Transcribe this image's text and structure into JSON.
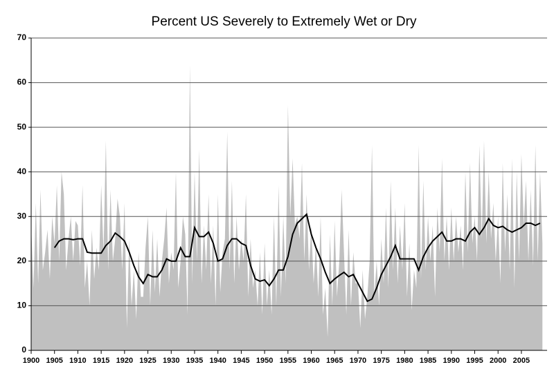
{
  "chart_data": {
    "type": "area-line",
    "title": "Percent US Severely to Extremely Wet or Dry",
    "xlim": [
      1900,
      2010.5
    ],
    "ylim": [
      0,
      70
    ],
    "xticks": [
      1900,
      1905,
      1910,
      1915,
      1920,
      1925,
      1930,
      1935,
      1940,
      1945,
      1950,
      1955,
      1960,
      1965,
      1970,
      1975,
      1980,
      1985,
      1990,
      1995,
      2000,
      2005
    ],
    "yticks": [
      0,
      10,
      20,
      30,
      40,
      50,
      60,
      70
    ],
    "grid": true,
    "series": [
      {
        "kind": "area",
        "color": "#c0c0c0",
        "x": [
          1900,
          1900.5,
          1901,
          1901.5,
          1902,
          1902.5,
          1903,
          1903.5,
          1904,
          1904.5,
          1905,
          1905.5,
          1906,
          1906.5,
          1907,
          1907.5,
          1908,
          1908.5,
          1909,
          1909.5,
          1910,
          1910.5,
          1911,
          1911.5,
          1912,
          1912.5,
          1913,
          1913.5,
          1914,
          1914.5,
          1915,
          1915.5,
          1916,
          1916.5,
          1917,
          1917.5,
          1918,
          1918.5,
          1919,
          1919.5,
          1920,
          1920.5,
          1921,
          1921.5,
          1922,
          1922.5,
          1923,
          1923.5,
          1924,
          1924.5,
          1925,
          1925.5,
          1926,
          1926.5,
          1927,
          1927.5,
          1928,
          1928.5,
          1929,
          1929.5,
          1930,
          1930.5,
          1931,
          1931.5,
          1932,
          1932.5,
          1933,
          1933.5,
          1934,
          1934.5,
          1935,
          1935.5,
          1936,
          1936.5,
          1937,
          1937.5,
          1938,
          1938.5,
          1939,
          1939.5,
          1940,
          1940.5,
          1941,
          1941.5,
          1942,
          1942.5,
          1943,
          1943.5,
          1944,
          1944.5,
          1945,
          1945.5,
          1946,
          1946.5,
          1947,
          1947.5,
          1948,
          1948.5,
          1949,
          1949.5,
          1950,
          1950.5,
          1951,
          1951.5,
          1952,
          1952.5,
          1953,
          1953.5,
          1954,
          1954.5,
          1955,
          1955.5,
          1956,
          1956.5,
          1957,
          1957.5,
          1958,
          1958.5,
          1959,
          1959.5,
          1960,
          1960.5,
          1961,
          1961.5,
          1962,
          1962.5,
          1963,
          1963.5,
          1964,
          1964.5,
          1965,
          1965.5,
          1966,
          1966.5,
          1967,
          1967.5,
          1968,
          1968.5,
          1969,
          1969.5,
          1970,
          1970.5,
          1971,
          1971.5,
          1972,
          1972.5,
          1973,
          1973.5,
          1974,
          1974.5,
          1975,
          1975.5,
          1976,
          1976.5,
          1977,
          1977.5,
          1978,
          1978.5,
          1979,
          1979.5,
          1980,
          1980.5,
          1981,
          1981.5,
          1982,
          1982.5,
          1983,
          1983.5,
          1984,
          1984.5,
          1985,
          1985.5,
          1986,
          1986.5,
          1987,
          1987.5,
          1988,
          1988.5,
          1989,
          1989.5,
          1990,
          1990.5,
          1991,
          1991.5,
          1992,
          1992.5,
          1993,
          1993.5,
          1994,
          1994.5,
          1995,
          1995.5,
          1996,
          1996.5,
          1997,
          1997.5,
          1998,
          1998.5,
          1999,
          1999.5,
          2000,
          2000.5,
          2001,
          2001.5,
          2002,
          2002.5,
          2003,
          2003.5,
          2004,
          2004.5,
          2005,
          2005.5,
          2006,
          2006.5,
          2007,
          2007.5,
          2008,
          2008.5,
          2009,
          2009.5
        ],
        "values": [
          28,
          14,
          33,
          15,
          36,
          18,
          22,
          27,
          16,
          30,
          24,
          37,
          20,
          40,
          35,
          18,
          25,
          30,
          20,
          29,
          28,
          19,
          37,
          14,
          20,
          10,
          27,
          16,
          23,
          18,
          37,
          22,
          47,
          18,
          36,
          20,
          25,
          34,
          30,
          18,
          33,
          5,
          25,
          10,
          18,
          7,
          22,
          12,
          12,
          23,
          30,
          10,
          27,
          13,
          25,
          12,
          20,
          25,
          32,
          15,
          22,
          18,
          40,
          14,
          20,
          30,
          26,
          8,
          64,
          15,
          40,
          20,
          45,
          15,
          28,
          18,
          35,
          15,
          28,
          10,
          35,
          13,
          22,
          25,
          49,
          18,
          38,
          15,
          30,
          18,
          25,
          20,
          35,
          12,
          25,
          14,
          18,
          10,
          22,
          8,
          24,
          10,
          18,
          8,
          30,
          10,
          37,
          12,
          30,
          15,
          55,
          30,
          43,
          28,
          30,
          25,
          42,
          20,
          35,
          18,
          28,
          15,
          24,
          12,
          30,
          8,
          14,
          3,
          26,
          10,
          29,
          12,
          20,
          36,
          22,
          8,
          27,
          10,
          22,
          15,
          15,
          5,
          18,
          7,
          12,
          20,
          46,
          12,
          20,
          10,
          25,
          15,
          32,
          14,
          38,
          18,
          32,
          15,
          28,
          18,
          33,
          12,
          24,
          9,
          18,
          14,
          46,
          16,
          38,
          18,
          30,
          20,
          28,
          12,
          32,
          22,
          43,
          20,
          30,
          18,
          32,
          20,
          30,
          22,
          28,
          18,
          40,
          22,
          42,
          24,
          30,
          20,
          46,
          25,
          47,
          24,
          40,
          25,
          33,
          20,
          30,
          15,
          42,
          22,
          35,
          18,
          43,
          14,
          40,
          20,
          44,
          28,
          38,
          20,
          36,
          19,
          46,
          20,
          40,
          24
        ]
      },
      {
        "kind": "line",
        "color": "#000000",
        "x": [
          1905,
          1906,
          1907,
          1908,
          1909,
          1910,
          1911,
          1912,
          1913,
          1914,
          1915,
          1916,
          1917,
          1918,
          1919,
          1920,
          1921,
          1922,
          1923,
          1924,
          1925,
          1926,
          1927,
          1928,
          1929,
          1930,
          1931,
          1932,
          1933,
          1934,
          1935,
          1936,
          1937,
          1938,
          1939,
          1940,
          1941,
          1942,
          1943,
          1944,
          1945,
          1946,
          1947,
          1948,
          1949,
          1950,
          1951,
          1952,
          1953,
          1954,
          1955,
          1956,
          1957,
          1958,
          1959,
          1960,
          1961,
          1962,
          1963,
          1964,
          1965,
          1966,
          1967,
          1968,
          1969,
          1970,
          1971,
          1972,
          1973,
          1974,
          1975,
          1976,
          1977,
          1978,
          1979,
          1980,
          1981,
          1982,
          1983,
          1984,
          1985,
          1986,
          1987,
          1988,
          1989,
          1990,
          1991,
          1992,
          1993,
          1994,
          1995,
          1996,
          1997,
          1998,
          1999,
          2000,
          2001,
          2002,
          2003,
          2004,
          2005,
          2006,
          2007,
          2008,
          2009
        ],
        "values": [
          23,
          24.5,
          25,
          25,
          24.8,
          25,
          25,
          22,
          21.8,
          21.8,
          21.8,
          23.5,
          24.5,
          26.3,
          25.5,
          24.5,
          22,
          19,
          16.5,
          15,
          17,
          16.5,
          16.5,
          18,
          20.5,
          20,
          20,
          23,
          21,
          21,
          27.5,
          25.5,
          25.5,
          26.5,
          24,
          20,
          20.5,
          23.5,
          25,
          25,
          24,
          23.5,
          19,
          16,
          15.5,
          15.8,
          14.5,
          16,
          18,
          18,
          21,
          26,
          28.5,
          29.5,
          30.5,
          26,
          23,
          20.5,
          17.5,
          15,
          16,
          16.8,
          17.5,
          16.5,
          17,
          15,
          13,
          11,
          11.5,
          14,
          17,
          19,
          21,
          23.5,
          20.5,
          20.5,
          20.5,
          20.5,
          18,
          21,
          23,
          24.5,
          25.5,
          26.5,
          24.5,
          24.5,
          25,
          25,
          24.5,
          26.5,
          27.5,
          26,
          27.5,
          29.5,
          28,
          27.5,
          27.8,
          27,
          26.5,
          27,
          27.5,
          28.5,
          28.5,
          28,
          28.5
        ]
      }
    ]
  }
}
